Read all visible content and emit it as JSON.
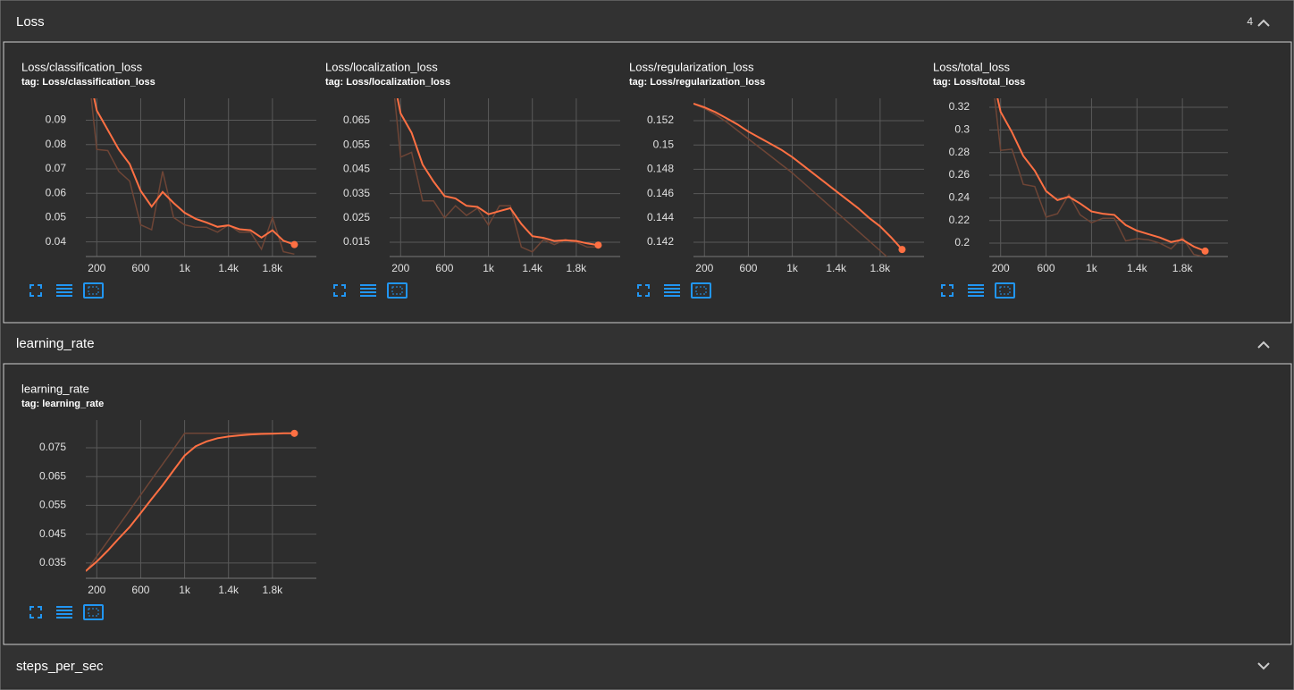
{
  "sections": [
    {
      "title": "Loss",
      "count": 4
    },
    {
      "title": "learning_rate"
    },
    {
      "title": "steps_per_sec"
    }
  ],
  "chart_data": [
    {
      "type": "line",
      "title": "Loss/classification_loss",
      "subtitle": "tag: Loss/classification_loss",
      "x": [
        100,
        200,
        300,
        400,
        500,
        600,
        700,
        800,
        900,
        1000,
        1100,
        1200,
        1300,
        1400,
        1500,
        1600,
        1700,
        1800,
        1900,
        2000
      ],
      "series": [
        {
          "color": "#6e4536",
          "values": [
            0.12,
            0.078,
            0.0775,
            0.069,
            0.065,
            0.047,
            0.045,
            0.069,
            0.05,
            0.047,
            0.046,
            0.046,
            0.044,
            0.047,
            0.044,
            0.044,
            0.037,
            0.05,
            0.036,
            0.035
          ]
        },
        {
          "color": "#ff7043",
          "values": [
            0.115,
            0.094,
            0.086,
            0.078,
            0.072,
            0.061,
            0.0545,
            0.0605,
            0.056,
            0.052,
            0.0495,
            0.048,
            0.0462,
            0.0468,
            0.0452,
            0.0448,
            0.0418,
            0.0448,
            0.0405,
            0.0389
          ]
        }
      ],
      "xlim": [
        100,
        2200
      ],
      "xticks": [
        200,
        600,
        {
          "value": 1000,
          "label": "1k"
        },
        {
          "value": 1400,
          "label": "1.4k"
        },
        {
          "value": 1800,
          "label": "1.8k"
        }
      ],
      "ylim": [
        0.034,
        0.099
      ],
      "yticks": [
        0.04,
        0.05,
        0.06,
        0.07,
        0.08,
        0.09
      ],
      "grid": true
    },
    {
      "type": "line",
      "title": "Loss/localization_loss",
      "subtitle": "tag: Loss/localization_loss",
      "x": [
        100,
        200,
        300,
        400,
        500,
        600,
        700,
        800,
        900,
        1000,
        1100,
        1200,
        1300,
        1400,
        1500,
        1600,
        1700,
        1800,
        1900,
        2000
      ],
      "series": [
        {
          "color": "#6e4536",
          "values": [
            0.095,
            0.05,
            0.052,
            0.032,
            0.032,
            0.025,
            0.03,
            0.026,
            0.029,
            0.022,
            0.03,
            0.03,
            0.013,
            0.011,
            0.016,
            0.014,
            0.016,
            0.015,
            0.013,
            0.013
          ]
        },
        {
          "color": "#ff7043",
          "values": [
            0.09,
            0.068,
            0.06,
            0.047,
            0.04,
            0.034,
            0.033,
            0.03,
            0.0295,
            0.0265,
            0.0278,
            0.029,
            0.0225,
            0.0175,
            0.0168,
            0.0155,
            0.0158,
            0.0155,
            0.0145,
            0.0138
          ]
        }
      ],
      "xlim": [
        100,
        2200
      ],
      "xticks": [
        200,
        600,
        {
          "value": 1000,
          "label": "1k"
        },
        {
          "value": 1400,
          "label": "1.4k"
        },
        {
          "value": 1800,
          "label": "1.8k"
        }
      ],
      "ylim": [
        0.0091,
        0.0742
      ],
      "yticks": [
        0.015,
        0.025,
        0.035,
        0.045,
        0.055,
        0.065
      ],
      "grid": true
    },
    {
      "type": "line",
      "title": "Loss/regularization_loss",
      "subtitle": "tag: Loss/regularization_loss",
      "x": [
        100,
        200,
        300,
        400,
        500,
        600,
        700,
        800,
        900,
        1000,
        1100,
        1200,
        1300,
        1400,
        1500,
        1600,
        1700,
        1800,
        1900,
        2000
      ],
      "series": [
        {
          "color": "#6e4536",
          "values": [
            0.1534,
            0.153,
            0.1525,
            0.1519,
            0.1512,
            0.1505,
            0.1498,
            0.1491,
            0.1484,
            0.1477,
            0.1469,
            0.1461,
            0.1453,
            0.1445,
            0.1437,
            0.1429,
            0.1421,
            0.1413,
            0.1405,
            0.1397
          ]
        },
        {
          "color": "#ff7043",
          "values": [
            0.1534,
            0.1531,
            0.1527,
            0.1522,
            0.1517,
            0.1511,
            0.1506,
            0.1501,
            0.1496,
            0.149,
            0.1483,
            0.1476,
            0.1469,
            0.1462,
            0.1455,
            0.1448,
            0.144,
            0.1433,
            0.1424,
            0.1414
          ]
        }
      ],
      "xlim": [
        100,
        2200
      ],
      "xticks": [
        200,
        600,
        {
          "value": 1000,
          "label": "1k"
        },
        {
          "value": 1400,
          "label": "1.4k"
        },
        {
          "value": 1800,
          "label": "1.8k"
        }
      ],
      "ylim": [
        0.14082,
        0.15384
      ],
      "yticks": [
        0.142,
        0.144,
        0.146,
        0.148,
        0.15,
        0.152
      ],
      "grid": true
    },
    {
      "type": "line",
      "title": "Loss/total_loss",
      "subtitle": "tag: Loss/total_loss",
      "x": [
        100,
        200,
        300,
        400,
        500,
        600,
        700,
        800,
        900,
        1000,
        1100,
        1200,
        1300,
        1400,
        1500,
        1600,
        1700,
        1800,
        1900,
        2000
      ],
      "series": [
        {
          "color": "#6e4536",
          "values": [
            0.37,
            0.282,
            0.283,
            0.252,
            0.25,
            0.223,
            0.226,
            0.243,
            0.225,
            0.218,
            0.222,
            0.222,
            0.202,
            0.204,
            0.203,
            0.2,
            0.195,
            0.205,
            0.19,
            0.188
          ]
        },
        {
          "color": "#ff7043",
          "values": [
            0.36,
            0.316,
            0.298,
            0.277,
            0.264,
            0.246,
            0.238,
            0.241,
            0.235,
            0.228,
            0.226,
            0.225,
            0.216,
            0.211,
            0.208,
            0.205,
            0.201,
            0.203,
            0.197,
            0.193
          ]
        }
      ],
      "xlim": [
        100,
        2200
      ],
      "xticks": [
        200,
        600,
        {
          "value": 1000,
          "label": "1k"
        },
        {
          "value": 1400,
          "label": "1.4k"
        },
        {
          "value": 1800,
          "label": "1.8k"
        }
      ],
      "ylim": [
        0.1882,
        0.3279
      ],
      "yticks": [
        0.2,
        0.22,
        0.24,
        0.26,
        0.28,
        0.3,
        0.32
      ],
      "grid": true
    },
    {
      "type": "line",
      "title": "learning_rate",
      "subtitle": "tag: learning_rate",
      "x": [
        100,
        200,
        300,
        400,
        500,
        600,
        700,
        800,
        900,
        1000,
        1100,
        1200,
        1300,
        1400,
        1500,
        1600,
        1700,
        1800,
        1900,
        2000
      ],
      "series": [
        {
          "color": "#6e4536",
          "values": [
            0.032,
            0.0373,
            0.0426,
            0.048,
            0.0533,
            0.0586,
            0.064,
            0.0693,
            0.0746,
            0.08,
            0.08,
            0.08,
            0.08,
            0.08,
            0.08,
            0.08,
            0.08,
            0.08,
            0.08,
            0.08
          ]
        },
        {
          "color": "#ff7043",
          "values": [
            0.0322,
            0.0355,
            0.0393,
            0.0435,
            0.0475,
            0.0523,
            0.0572,
            0.062,
            0.0672,
            0.0723,
            0.0755,
            0.0772,
            0.0783,
            0.0789,
            0.0793,
            0.0796,
            0.0798,
            0.0799,
            0.08,
            0.08
          ]
        }
      ],
      "xlim": [
        100,
        2200
      ],
      "xticks": [
        200,
        600,
        {
          "value": 1000,
          "label": "1k"
        },
        {
          "value": 1400,
          "label": "1.4k"
        },
        {
          "value": 1800,
          "label": "1.8k"
        }
      ],
      "ylim": [
        0.0297,
        0.0846
      ],
      "yticks": [
        0.035,
        0.045,
        0.055,
        0.065,
        0.075
      ],
      "grid": true
    }
  ]
}
